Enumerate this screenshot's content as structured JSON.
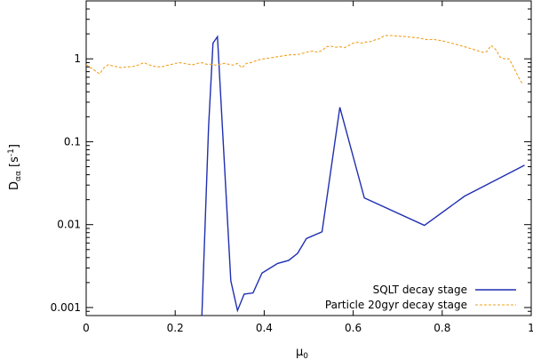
{
  "chart_data": {
    "type": "line",
    "xlabel": "μ",
    "xlabel_sub": "0",
    "ylabel": "D",
    "ylabel_sub": "αα",
    "ylabel_unit": " [s",
    "ylabel_unit_sup": "-1",
    "ylabel_unit_close": "]",
    "xlim": [
      0,
      1
    ],
    "ylim": [
      0.0008,
      5
    ],
    "yscale": "log",
    "grid": false,
    "legend_position": "bottom-right",
    "xticks": [
      0,
      0.2,
      0.4,
      0.6,
      0.8,
      1
    ],
    "xtick_labels": [
      "0",
      "0.2",
      "0.4",
      "0.6",
      "0.8",
      "1"
    ],
    "yticks": [
      0.001,
      0.01,
      0.1,
      1
    ],
    "ytick_labels": [
      "0.001",
      "0.01",
      "0.1",
      "1"
    ],
    "series": [
      {
        "name": "SQLT decay stage",
        "color": "#1f2fb0",
        "style": "solid",
        "x": [
          0.26,
          0.275,
          0.285,
          0.295,
          0.325,
          0.34,
          0.355,
          0.375,
          0.395,
          0.43,
          0.455,
          0.475,
          0.495,
          0.53,
          0.57,
          0.625,
          0.76,
          0.85,
          0.985
        ],
        "y": [
          0.0008,
          0.15,
          1.55,
          1.85,
          0.0021,
          0.00092,
          0.00145,
          0.0015,
          0.0026,
          0.0034,
          0.0037,
          0.0045,
          0.0068,
          0.0082,
          0.26,
          0.021,
          0.0098,
          0.022,
          0.052
        ]
      },
      {
        "name": "Particle 20gyr decay stage",
        "color": "#f0a020",
        "style": "dashed",
        "x": [
          0,
          0.01,
          0.02,
          0.03,
          0.04,
          0.05,
          0.06,
          0.07,
          0.08,
          0.09,
          0.1,
          0.11,
          0.12,
          0.13,
          0.14,
          0.15,
          0.16,
          0.17,
          0.18,
          0.19,
          0.2,
          0.21,
          0.22,
          0.23,
          0.24,
          0.25,
          0.26,
          0.27,
          0.28,
          0.29,
          0.3,
          0.31,
          0.32,
          0.33,
          0.34,
          0.35,
          0.36,
          0.37,
          0.38,
          0.39,
          0.4,
          0.41,
          0.42,
          0.43,
          0.44,
          0.45,
          0.46,
          0.47,
          0.48,
          0.49,
          0.5,
          0.51,
          0.52,
          0.53,
          0.54,
          0.55,
          0.56,
          0.57,
          0.58,
          0.59,
          0.6,
          0.61,
          0.62,
          0.63,
          0.64,
          0.65,
          0.66,
          0.67,
          0.68,
          0.69,
          0.7,
          0.71,
          0.72,
          0.73,
          0.74,
          0.75,
          0.76,
          0.77,
          0.78,
          0.79,
          0.8,
          0.81,
          0.82,
          0.83,
          0.84,
          0.85,
          0.86,
          0.87,
          0.88,
          0.89,
          0.9,
          0.91,
          0.92,
          0.93,
          0.94,
          0.95,
          0.96,
          0.97,
          0.98
        ],
        "y": [
          0.85,
          0.78,
          0.72,
          0.66,
          0.78,
          0.85,
          0.82,
          0.8,
          0.78,
          0.8,
          0.8,
          0.82,
          0.85,
          0.9,
          0.85,
          0.82,
          0.8,
          0.8,
          0.83,
          0.85,
          0.88,
          0.9,
          0.88,
          0.86,
          0.85,
          0.88,
          0.9,
          0.86,
          0.86,
          0.84,
          0.86,
          0.88,
          0.86,
          0.84,
          0.88,
          0.78,
          0.88,
          0.9,
          0.94,
          0.98,
          1.0,
          1.02,
          1.04,
          1.06,
          1.08,
          1.1,
          1.12,
          1.12,
          1.14,
          1.18,
          1.22,
          1.24,
          1.2,
          1.26,
          1.4,
          1.42,
          1.38,
          1.4,
          1.36,
          1.45,
          1.55,
          1.58,
          1.55,
          1.6,
          1.62,
          1.7,
          1.75,
          1.9,
          1.92,
          1.9,
          1.88,
          1.86,
          1.85,
          1.82,
          1.8,
          1.78,
          1.72,
          1.7,
          1.72,
          1.68,
          1.65,
          1.6,
          1.55,
          1.5,
          1.45,
          1.4,
          1.35,
          1.3,
          1.25,
          1.2,
          1.22,
          1.45,
          1.3,
          1.05,
          1.0,
          1.0,
          0.8,
          0.62,
          0.5
        ]
      }
    ]
  }
}
